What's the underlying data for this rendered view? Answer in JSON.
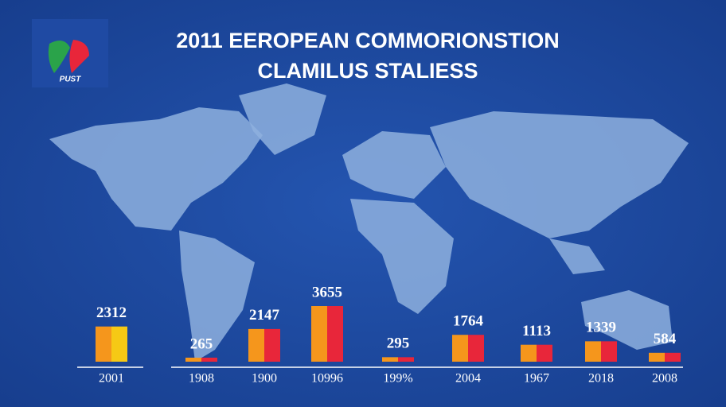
{
  "logo": {
    "text": "PUST"
  },
  "chart_data": {
    "type": "bar",
    "title": "2011 EEROPEAN COMMORIONSTION",
    "subtitle": "CLAMILUS STALIESS",
    "categories": [
      "2001",
      "1908",
      "1900",
      "10996",
      "199%",
      "2004",
      "1967",
      "2018",
      "2008"
    ],
    "values": [
      2312,
      265,
      2147,
      3655,
      295,
      1764,
      1113,
      1339,
      584
    ],
    "colors": [
      "#f5961c",
      "#e8263a"
    ],
    "first_bar_colors": [
      "#f5961c",
      "#f6c915"
    ]
  }
}
